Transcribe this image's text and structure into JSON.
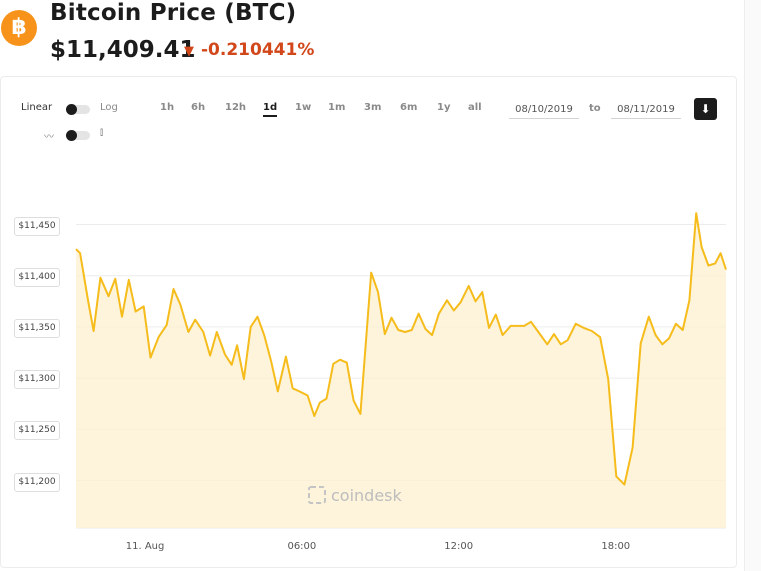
{
  "header": {
    "coin_symbol_glyph": "฿",
    "title": "Bitcoin Price (BTC)",
    "price": "$11,409.41",
    "change_arrow": "▼",
    "change": "-0.210441%"
  },
  "controls": {
    "scale_left": "Linear",
    "scale_right": "Log",
    "chart_style_line_glyph": "〰",
    "chart_style_candle_glyph": "⫾",
    "timeframes": [
      {
        "label": "1h",
        "active": false
      },
      {
        "label": "6h",
        "active": false
      },
      {
        "label": "12h",
        "active": false
      },
      {
        "label": "1d",
        "active": true
      },
      {
        "label": "1w",
        "active": false
      },
      {
        "label": "1m",
        "active": false
      },
      {
        "label": "3m",
        "active": false
      },
      {
        "label": "6m",
        "active": false
      },
      {
        "label": "1y",
        "active": false
      },
      {
        "label": "all",
        "active": false
      }
    ],
    "date_from": "08/10/2019",
    "date_to_label": "to",
    "date_to": "08/11/2019",
    "download_glyph": "⬇"
  },
  "watermark": "coindesk",
  "colors": {
    "line": "#f5bc1c",
    "fill": "#fdf1d2",
    "negative": "#d2471a",
    "brand": "#f7931a"
  },
  "chart_data": {
    "type": "area",
    "title": "",
    "xlabel": "",
    "ylabel": "",
    "ylim": [
      11160,
      11510
    ],
    "xlim": [
      0,
      24
    ],
    "yticks": [
      11200,
      11250,
      11300,
      11350,
      11400,
      11450
    ],
    "ytick_labels": [
      "$11,200",
      "$11,250",
      "$11,300",
      "$11,350",
      "$11,400",
      "$11,450"
    ],
    "xticks": [
      2.55,
      8.34,
      14.13,
      19.93
    ],
    "xtick_labels": [
      "11. Aug",
      "06:00",
      "12:00",
      "18:00"
    ],
    "grid": true,
    "series": [
      {
        "values": [
          [
            0.0,
            11426
          ],
          [
            0.15,
            11422
          ],
          [
            0.45,
            11375
          ],
          [
            0.65,
            11346
          ],
          [
            0.9,
            11398
          ],
          [
            1.2,
            11380
          ],
          [
            1.45,
            11397
          ],
          [
            1.7,
            11360
          ],
          [
            1.95,
            11396
          ],
          [
            2.2,
            11365
          ],
          [
            2.5,
            11370
          ],
          [
            2.75,
            11320
          ],
          [
            3.05,
            11340
          ],
          [
            3.35,
            11352
          ],
          [
            3.6,
            11387
          ],
          [
            3.85,
            11372
          ],
          [
            4.15,
            11345
          ],
          [
            4.4,
            11357
          ],
          [
            4.7,
            11345
          ],
          [
            4.95,
            11322
          ],
          [
            5.2,
            11345
          ],
          [
            5.5,
            11323
          ],
          [
            5.75,
            11313
          ],
          [
            5.95,
            11332
          ],
          [
            6.2,
            11299
          ],
          [
            6.45,
            11350
          ],
          [
            6.7,
            11360
          ],
          [
            6.95,
            11342
          ],
          [
            7.2,
            11317
          ],
          [
            7.45,
            11287
          ],
          [
            7.75,
            11321
          ],
          [
            8.0,
            11290
          ],
          [
            8.25,
            11287
          ],
          [
            8.55,
            11283
          ],
          [
            8.8,
            11263
          ],
          [
            9.0,
            11276
          ],
          [
            9.25,
            11280
          ],
          [
            9.5,
            11314
          ],
          [
            9.75,
            11318
          ],
          [
            10.0,
            11315
          ],
          [
            10.25,
            11278
          ],
          [
            10.5,
            11265
          ],
          [
            10.9,
            11403
          ],
          [
            11.15,
            11384
          ],
          [
            11.4,
            11343
          ],
          [
            11.65,
            11359
          ],
          [
            11.9,
            11347
          ],
          [
            12.15,
            11345
          ],
          [
            12.4,
            11347
          ],
          [
            12.65,
            11363
          ],
          [
            12.9,
            11348
          ],
          [
            13.15,
            11342
          ],
          [
            13.4,
            11363
          ],
          [
            13.7,
            11376
          ],
          [
            13.95,
            11366
          ],
          [
            14.2,
            11374
          ],
          [
            14.5,
            11390
          ],
          [
            14.75,
            11375
          ],
          [
            15.0,
            11384
          ],
          [
            15.25,
            11349
          ],
          [
            15.5,
            11362
          ],
          [
            15.75,
            11342
          ],
          [
            16.05,
            11351
          ],
          [
            16.3,
            11351
          ],
          [
            16.55,
            11351
          ],
          [
            16.8,
            11355
          ],
          [
            17.1,
            11344
          ],
          [
            17.4,
            11333
          ],
          [
            17.65,
            11343
          ],
          [
            17.9,
            11333
          ],
          [
            18.15,
            11337
          ],
          [
            18.45,
            11353
          ],
          [
            18.75,
            11349
          ],
          [
            19.05,
            11346
          ],
          [
            19.35,
            11340
          ],
          [
            19.65,
            11299
          ],
          [
            19.95,
            11204
          ],
          [
            20.25,
            11196
          ],
          [
            20.55,
            11232
          ],
          [
            20.85,
            11334
          ],
          [
            21.15,
            11360
          ],
          [
            21.4,
            11342
          ],
          [
            21.65,
            11333
          ],
          [
            21.9,
            11339
          ],
          [
            22.15,
            11353
          ],
          [
            22.4,
            11347
          ],
          [
            22.65,
            11376
          ],
          [
            22.9,
            11461
          ],
          [
            23.1,
            11428
          ],
          [
            23.35,
            11410
          ],
          [
            23.6,
            11412
          ],
          [
            23.8,
            11422
          ],
          [
            24.0,
            11406
          ]
        ]
      }
    ]
  }
}
